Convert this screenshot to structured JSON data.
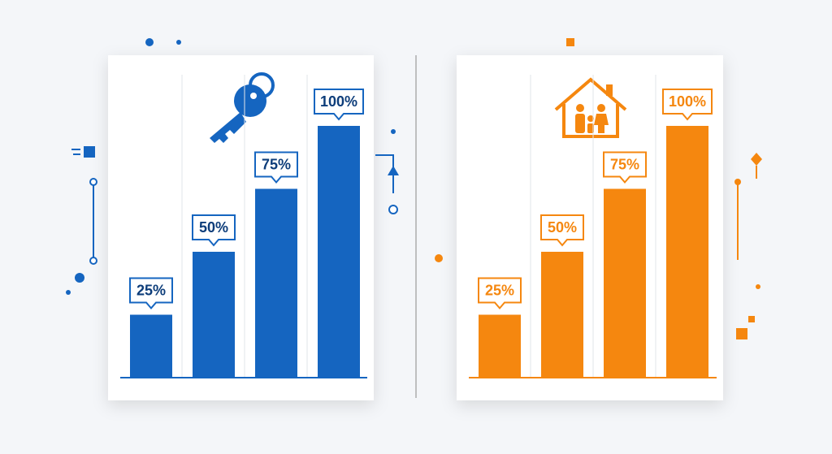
{
  "chart_data": [
    {
      "type": "bar",
      "categories": [
        null,
        null,
        null,
        null
      ],
      "values": [
        25,
        50,
        75,
        100
      ],
      "value_labels": [
        "25%",
        "50%",
        "75%",
        "100%"
      ],
      "color": "#1565c0",
      "ylim": [
        0,
        100
      ]
    },
    {
      "type": "bar",
      "categories": [
        null,
        null,
        null,
        null
      ],
      "values": [
        25,
        50,
        75,
        100
      ],
      "value_labels": [
        "25%",
        "50%",
        "75%",
        "100%"
      ],
      "color": "#f5870f",
      "ylim": [
        0,
        100
      ]
    }
  ]
}
